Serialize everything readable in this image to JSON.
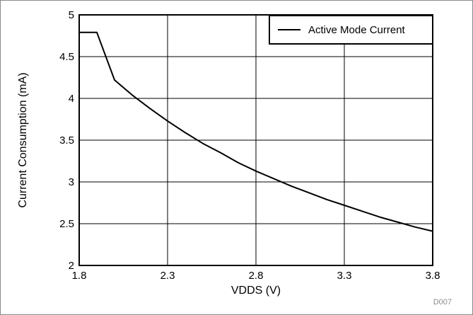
{
  "chart_data": {
    "type": "line",
    "title": "",
    "xlabel": "VDDS (V)",
    "ylabel": "Current Consumption (mA)",
    "xlim": [
      1.8,
      3.8
    ],
    "ylim": [
      2,
      5
    ],
    "x_ticks": [
      "1.8",
      "2.3",
      "2.8",
      "3.3",
      "3.8"
    ],
    "y_ticks": [
      "2",
      "2.5",
      "3",
      "3.5",
      "4",
      "4.5",
      "5"
    ],
    "grid": true,
    "legend_position": "top-right",
    "figure_code": "D007",
    "series": [
      {
        "name": "Active Mode Current",
        "color": "#000000",
        "points": [
          [
            1.8,
            4.79
          ],
          [
            1.9,
            4.79
          ],
          [
            2.0,
            4.22
          ],
          [
            2.1,
            4.04
          ],
          [
            2.2,
            3.88
          ],
          [
            2.3,
            3.73
          ],
          [
            2.4,
            3.59
          ],
          [
            2.5,
            3.46
          ],
          [
            2.6,
            3.35
          ],
          [
            2.7,
            3.23
          ],
          [
            2.8,
            3.13
          ],
          [
            2.9,
            3.04
          ],
          [
            3.0,
            2.95
          ],
          [
            3.1,
            2.87
          ],
          [
            3.2,
            2.79
          ],
          [
            3.3,
            2.72
          ],
          [
            3.4,
            2.65
          ],
          [
            3.5,
            2.58
          ],
          [
            3.6,
            2.52
          ],
          [
            3.7,
            2.46
          ],
          [
            3.8,
            2.41
          ]
        ]
      }
    ]
  }
}
